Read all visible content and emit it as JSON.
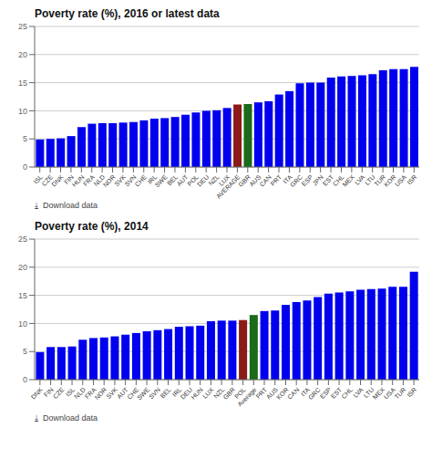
{
  "chart_data": [
    {
      "type": "bar",
      "title": "Poverty rate (%), 2016 or latest data",
      "categories": [
        "ISL",
        "CZE",
        "DNK",
        "FIN",
        "HUN",
        "FRA",
        "NLD",
        "NOR",
        "SVK",
        "SVN",
        "CHE",
        "IRL",
        "SWE",
        "BEL",
        "AUT",
        "POL",
        "DEU",
        "NZL",
        "LUX",
        "AVERAGE",
        "GBR",
        "AUS",
        "CAN",
        "PRT",
        "ITA",
        "GRC",
        "ESP",
        "JPN",
        "EST",
        "CHL",
        "MEX",
        "LVA",
        "LTU",
        "TUR",
        "KOR",
        "USA",
        "ISR"
      ],
      "values": [
        4.9,
        5.0,
        5.1,
        5.5,
        7.1,
        7.7,
        7.8,
        7.8,
        7.9,
        8.0,
        8.3,
        8.6,
        8.7,
        8.9,
        9.3,
        9.7,
        10.0,
        10.1,
        10.5,
        11.1,
        11.2,
        11.5,
        11.7,
        12.9,
        13.5,
        14.9,
        15.0,
        15.0,
        15.9,
        16.1,
        16.2,
        16.3,
        16.5,
        17.2,
        17.4,
        17.4,
        17.8
      ],
      "colors": [
        "#0000ee",
        "#0000ee",
        "#0000ee",
        "#0000ee",
        "#0000ee",
        "#0000ee",
        "#0000ee",
        "#0000ee",
        "#0000ee",
        "#0000ee",
        "#0000ee",
        "#0000ee",
        "#0000ee",
        "#0000ee",
        "#0000ee",
        "#0000ee",
        "#0000ee",
        "#0000ee",
        "#0000ee",
        "#8B1A1A",
        "#1a6b1a",
        "#0000ee",
        "#0000ee",
        "#0000ee",
        "#0000ee",
        "#0000ee",
        "#0000ee",
        "#0000ee",
        "#0000ee",
        "#0000ee",
        "#0000ee",
        "#0000ee",
        "#0000ee",
        "#0000ee",
        "#0000ee",
        "#0000ee",
        "#0000ee"
      ],
      "ylim": [
        0,
        25
      ],
      "yticks": [
        0,
        5,
        10,
        15,
        20,
        25
      ],
      "grid": true,
      "annotations": [
        "⤓  Download data"
      ]
    },
    {
      "type": "bar",
      "title": "Poverty rate (%), 2014",
      "categories": [
        "DNK",
        "FIN",
        "CZE",
        "ISL",
        "NLD",
        "FRA",
        "NOR",
        "SVK",
        "AUT",
        "CHE",
        "SWE",
        "SVN",
        "BEL",
        "IRL",
        "DEU",
        "HUN",
        "LUX",
        "NZL",
        "GBR",
        "POL",
        "Average",
        "PRT",
        "AUS",
        "KOR",
        "CAN",
        "ITA",
        "GRC",
        "ESP",
        "EST",
        "CHL",
        "LVA",
        "LTU",
        "MEX",
        "USA",
        "TUR",
        "ISR"
      ],
      "values": [
        4.9,
        5.8,
        5.8,
        5.9,
        7.1,
        7.4,
        7.5,
        7.7,
        8.0,
        8.3,
        8.6,
        8.8,
        9.0,
        9.4,
        9.5,
        9.6,
        10.4,
        10.5,
        10.5,
        10.6,
        11.5,
        12.2,
        12.3,
        13.3,
        13.8,
        14.1,
        14.7,
        15.3,
        15.5,
        15.7,
        16.0,
        16.1,
        16.2,
        16.5,
        16.5,
        19.2
      ],
      "colors": [
        "#0000ee",
        "#0000ee",
        "#0000ee",
        "#0000ee",
        "#0000ee",
        "#0000ee",
        "#0000ee",
        "#0000ee",
        "#0000ee",
        "#0000ee",
        "#0000ee",
        "#0000ee",
        "#0000ee",
        "#0000ee",
        "#0000ee",
        "#0000ee",
        "#0000ee",
        "#0000ee",
        "#0000ee",
        "#8B1A1A",
        "#1a6b1a",
        "#0000ee",
        "#0000ee",
        "#0000ee",
        "#0000ee",
        "#0000ee",
        "#0000ee",
        "#0000ee",
        "#0000ee",
        "#0000ee",
        "#0000ee",
        "#0000ee",
        "#0000ee",
        "#0000ee",
        "#0000ee",
        "#0000ee"
      ],
      "ylim": [
        0,
        25
      ],
      "yticks": [
        0,
        5,
        10,
        15,
        20,
        25
      ],
      "grid": true,
      "annotations": [
        "⤓  Download data"
      ]
    }
  ]
}
